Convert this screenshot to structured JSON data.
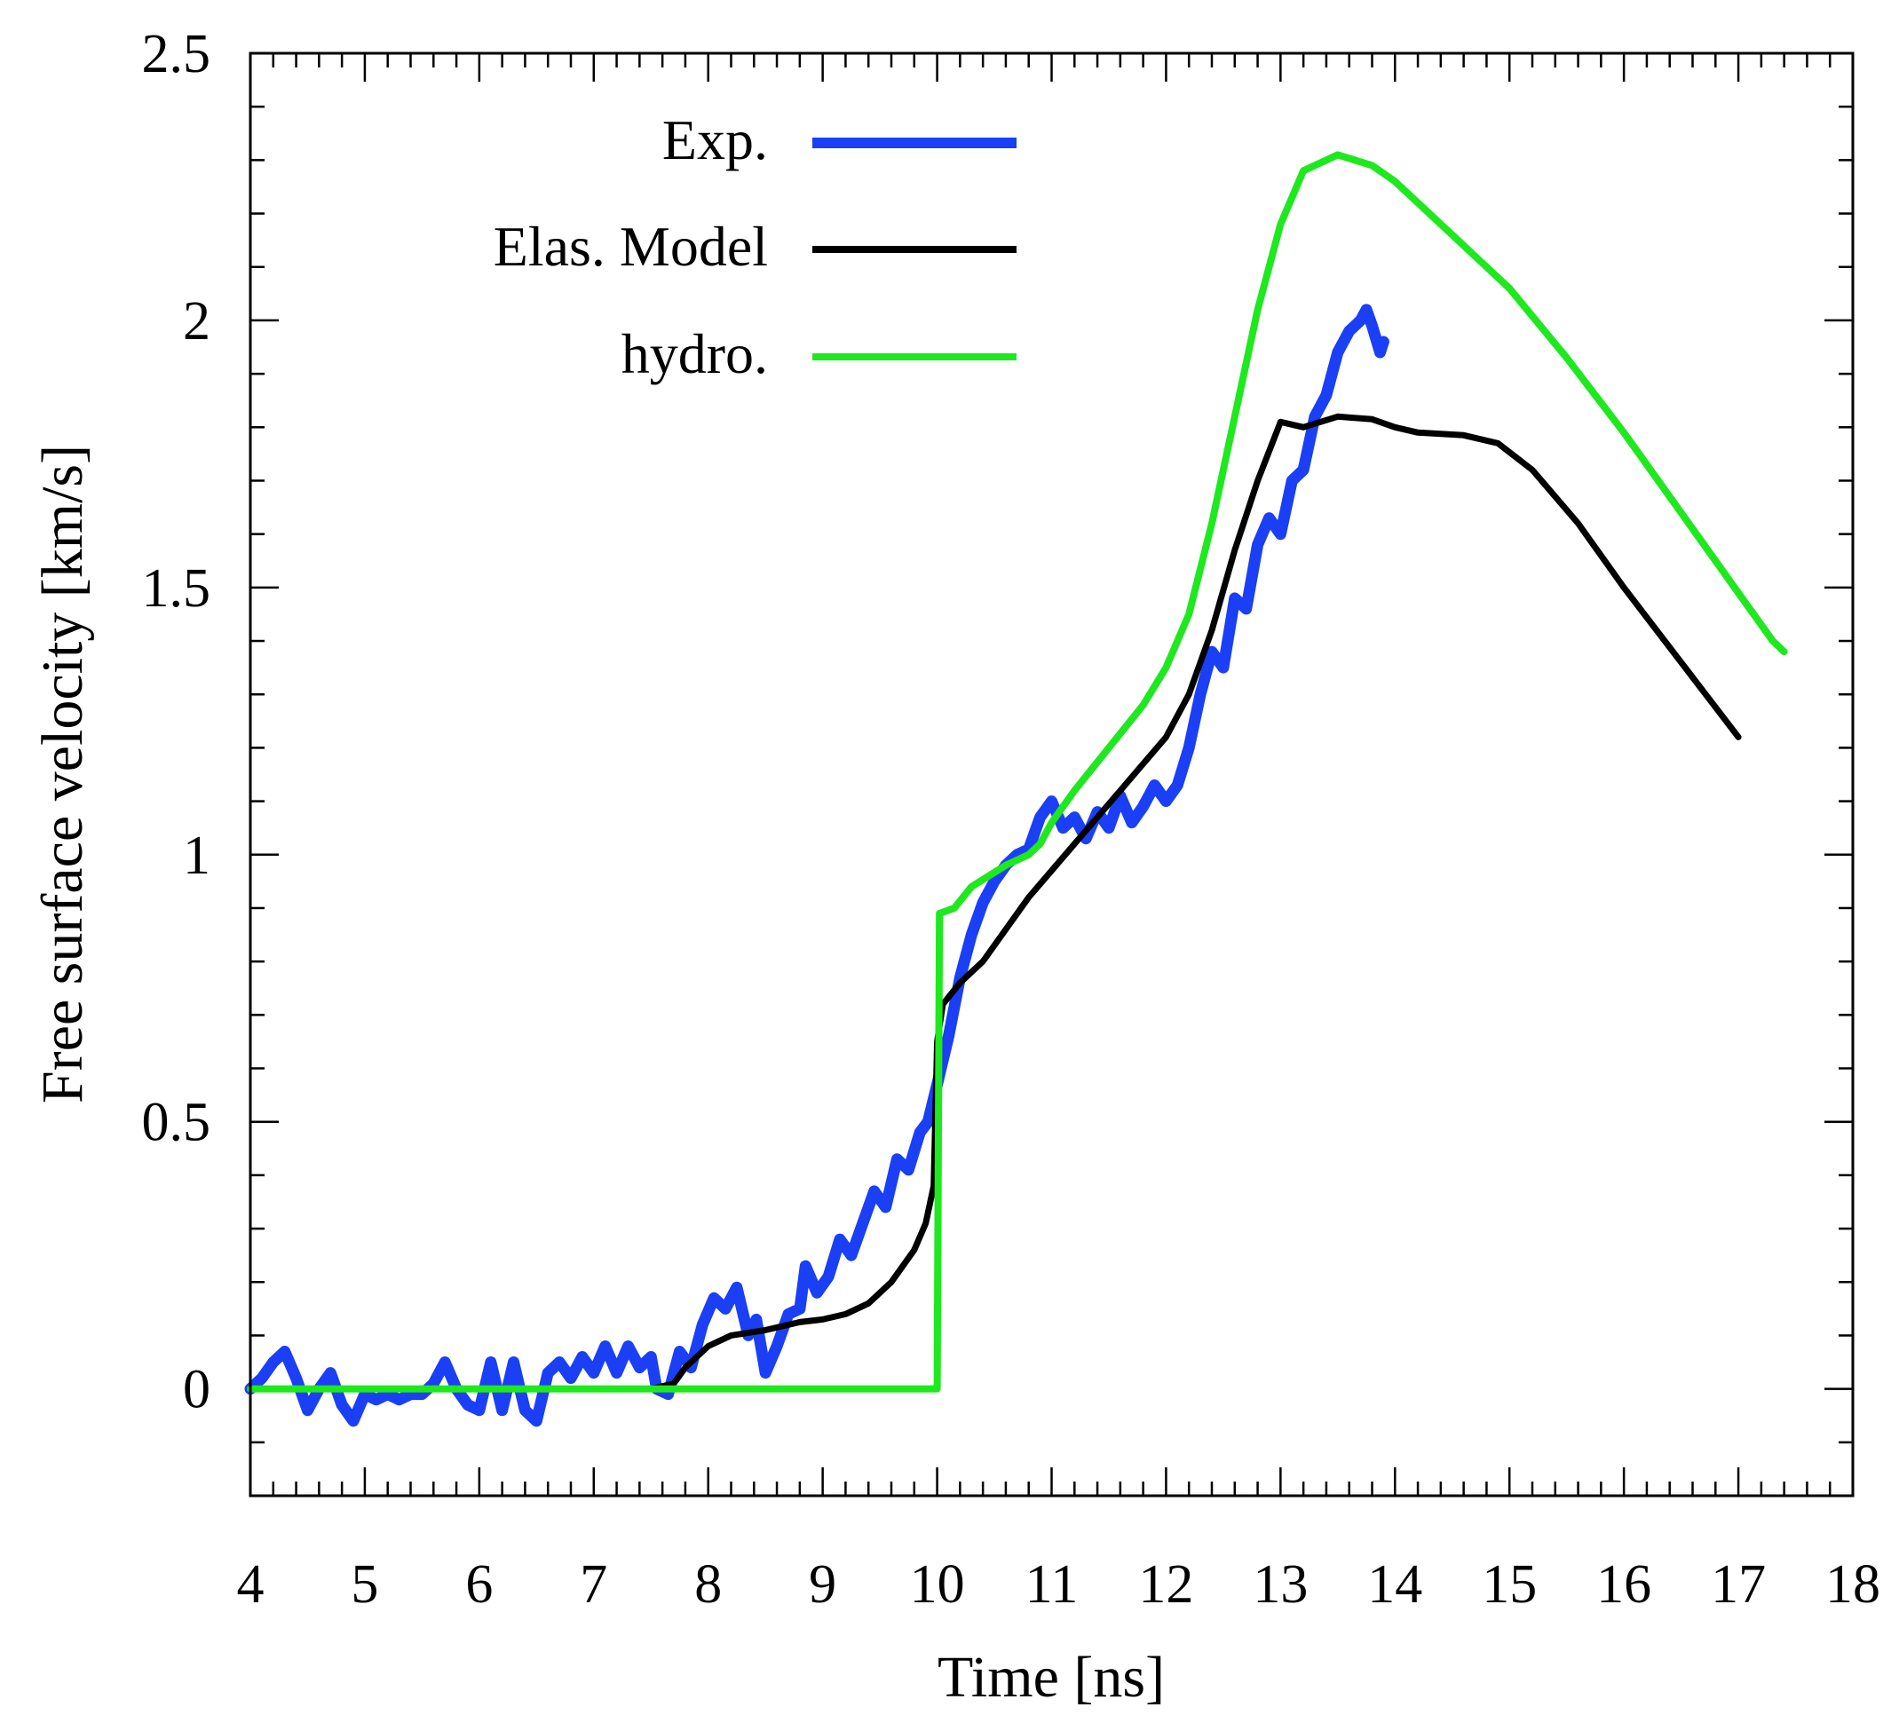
{
  "chart_data": {
    "type": "line",
    "title": "",
    "xlabel": "Time [ns]",
    "ylabel": "Free surface velocity [km/s]",
    "xlim": [
      4,
      18
    ],
    "ylim": [
      -0.2,
      2.5
    ],
    "xticks": [
      4,
      5,
      6,
      7,
      8,
      9,
      10,
      11,
      12,
      13,
      14,
      15,
      16,
      17,
      18
    ],
    "xtick_labels": [
      "4",
      "5",
      "6",
      "7",
      "8",
      "9",
      "10",
      "11",
      "12",
      "13",
      "14",
      "15",
      "16",
      "17",
      "18"
    ],
    "yticks": [
      0,
      0.5,
      1,
      1.5,
      2,
      2.5
    ],
    "ytick_labels": [
      "0",
      "0.5",
      "1",
      "1.5",
      "2",
      "2.5"
    ],
    "minor_x_step": 0.2,
    "minor_y_step": 0.1,
    "legend_position": "top-left",
    "series": [
      {
        "name": "Exp.",
        "color": "#1a3ff5",
        "points": [
          [
            4.0,
            0.0
          ],
          [
            4.1,
            0.02
          ],
          [
            4.2,
            0.05
          ],
          [
            4.3,
            0.07
          ],
          [
            4.4,
            0.02
          ],
          [
            4.5,
            -0.04
          ],
          [
            4.6,
            0.0
          ],
          [
            4.7,
            0.03
          ],
          [
            4.8,
            -0.03
          ],
          [
            4.9,
            -0.06
          ],
          [
            5.0,
            -0.01
          ],
          [
            5.1,
            -0.02
          ],
          [
            5.2,
            -0.01
          ],
          [
            5.3,
            -0.02
          ],
          [
            5.4,
            -0.01
          ],
          [
            5.5,
            -0.01
          ],
          [
            5.6,
            0.01
          ],
          [
            5.7,
            0.05
          ],
          [
            5.8,
            0.0
          ],
          [
            5.9,
            -0.03
          ],
          [
            6.0,
            -0.04
          ],
          [
            6.1,
            0.05
          ],
          [
            6.2,
            -0.04
          ],
          [
            6.3,
            0.05
          ],
          [
            6.4,
            -0.04
          ],
          [
            6.5,
            -0.06
          ],
          [
            6.6,
            0.03
          ],
          [
            6.7,
            0.05
          ],
          [
            6.8,
            0.02
          ],
          [
            6.9,
            0.06
          ],
          [
            7.0,
            0.03
          ],
          [
            7.1,
            0.08
          ],
          [
            7.2,
            0.03
          ],
          [
            7.3,
            0.08
          ],
          [
            7.4,
            0.04
          ],
          [
            7.5,
            0.06
          ],
          [
            7.55,
            0.0
          ],
          [
            7.65,
            -0.01
          ],
          [
            7.75,
            0.07
          ],
          [
            7.85,
            0.04
          ],
          [
            7.95,
            0.12
          ],
          [
            8.05,
            0.17
          ],
          [
            8.15,
            0.15
          ],
          [
            8.25,
            0.19
          ],
          [
            8.35,
            0.1
          ],
          [
            8.42,
            0.13
          ],
          [
            8.5,
            0.03
          ],
          [
            8.6,
            0.08
          ],
          [
            8.7,
            0.14
          ],
          [
            8.8,
            0.15
          ],
          [
            8.85,
            0.23
          ],
          [
            8.95,
            0.18
          ],
          [
            9.05,
            0.21
          ],
          [
            9.15,
            0.28
          ],
          [
            9.25,
            0.25
          ],
          [
            9.35,
            0.31
          ],
          [
            9.45,
            0.37
          ],
          [
            9.55,
            0.34
          ],
          [
            9.65,
            0.43
          ],
          [
            9.75,
            0.41
          ],
          [
            9.85,
            0.48
          ],
          [
            9.92,
            0.5
          ],
          [
            10.0,
            0.57
          ],
          [
            10.1,
            0.66
          ],
          [
            10.2,
            0.77
          ],
          [
            10.3,
            0.85
          ],
          [
            10.4,
            0.91
          ],
          [
            10.5,
            0.95
          ],
          [
            10.6,
            0.98
          ],
          [
            10.7,
            1.0
          ],
          [
            10.8,
            1.01
          ],
          [
            10.9,
            1.07
          ],
          [
            11.0,
            1.1
          ],
          [
            11.1,
            1.05
          ],
          [
            11.2,
            1.07
          ],
          [
            11.3,
            1.03
          ],
          [
            11.4,
            1.08
          ],
          [
            11.5,
            1.05
          ],
          [
            11.6,
            1.11
          ],
          [
            11.7,
            1.06
          ],
          [
            11.8,
            1.09
          ],
          [
            11.9,
            1.13
          ],
          [
            12.0,
            1.1
          ],
          [
            12.1,
            1.13
          ],
          [
            12.2,
            1.2
          ],
          [
            12.3,
            1.3
          ],
          [
            12.4,
            1.38
          ],
          [
            12.5,
            1.35
          ],
          [
            12.6,
            1.48
          ],
          [
            12.7,
            1.46
          ],
          [
            12.8,
            1.58
          ],
          [
            12.9,
            1.63
          ],
          [
            13.0,
            1.6
          ],
          [
            13.1,
            1.7
          ],
          [
            13.2,
            1.72
          ],
          [
            13.3,
            1.82
          ],
          [
            13.4,
            1.86
          ],
          [
            13.5,
            1.94
          ],
          [
            13.6,
            1.98
          ],
          [
            13.7,
            2.0
          ],
          [
            13.75,
            2.02
          ],
          [
            13.8,
            1.99
          ],
          [
            13.87,
            1.94
          ],
          [
            13.9,
            1.96
          ]
        ]
      },
      {
        "name": "Elas. Model",
        "color": "#000000",
        "points": [
          [
            4.0,
            0.0
          ],
          [
            5.0,
            0.0
          ],
          [
            6.0,
            0.0
          ],
          [
            7.0,
            0.0
          ],
          [
            7.5,
            0.0
          ],
          [
            7.7,
            0.01
          ],
          [
            7.8,
            0.04
          ],
          [
            8.0,
            0.08
          ],
          [
            8.2,
            0.1
          ],
          [
            8.5,
            0.11
          ],
          [
            8.8,
            0.125
          ],
          [
            9.0,
            0.13
          ],
          [
            9.2,
            0.14
          ],
          [
            9.4,
            0.16
          ],
          [
            9.6,
            0.2
          ],
          [
            9.8,
            0.26
          ],
          [
            9.9,
            0.31
          ],
          [
            9.97,
            0.38
          ],
          [
            10.0,
            0.65
          ],
          [
            10.05,
            0.72
          ],
          [
            10.2,
            0.76
          ],
          [
            10.4,
            0.8
          ],
          [
            10.6,
            0.86
          ],
          [
            10.8,
            0.92
          ],
          [
            11.0,
            0.97
          ],
          [
            11.2,
            1.02
          ],
          [
            11.4,
            1.07
          ],
          [
            11.6,
            1.12
          ],
          [
            11.8,
            1.17
          ],
          [
            12.0,
            1.22
          ],
          [
            12.2,
            1.3
          ],
          [
            12.4,
            1.42
          ],
          [
            12.6,
            1.57
          ],
          [
            12.8,
            1.7
          ],
          [
            13.0,
            1.81
          ],
          [
            13.2,
            1.8
          ],
          [
            13.5,
            1.82
          ],
          [
            13.8,
            1.815
          ],
          [
            14.0,
            1.8
          ],
          [
            14.2,
            1.79
          ],
          [
            14.6,
            1.785
          ],
          [
            14.9,
            1.77
          ],
          [
            15.2,
            1.72
          ],
          [
            15.6,
            1.62
          ],
          [
            16.0,
            1.5
          ],
          [
            16.5,
            1.36
          ],
          [
            17.0,
            1.22
          ]
        ]
      },
      {
        "name": "hydro.",
        "color": "#1ee81e",
        "points": [
          [
            4.0,
            0.0
          ],
          [
            5.0,
            0.0
          ],
          [
            6.0,
            0.0
          ],
          [
            7.0,
            0.0
          ],
          [
            8.0,
            0.0
          ],
          [
            9.0,
            0.0
          ],
          [
            9.95,
            0.0
          ],
          [
            10.0,
            0.0
          ],
          [
            10.02,
            0.89
          ],
          [
            10.15,
            0.9
          ],
          [
            10.3,
            0.94
          ],
          [
            10.6,
            0.98
          ],
          [
            10.8,
            1.0
          ],
          [
            10.9,
            1.02
          ],
          [
            11.0,
            1.06
          ],
          [
            11.2,
            1.12
          ],
          [
            11.5,
            1.2
          ],
          [
            11.8,
            1.28
          ],
          [
            12.0,
            1.35
          ],
          [
            12.2,
            1.45
          ],
          [
            12.4,
            1.62
          ],
          [
            12.6,
            1.82
          ],
          [
            12.8,
            2.02
          ],
          [
            13.0,
            2.18
          ],
          [
            13.2,
            2.28
          ],
          [
            13.5,
            2.31
          ],
          [
            13.8,
            2.29
          ],
          [
            14.0,
            2.26
          ],
          [
            14.5,
            2.16
          ],
          [
            15.0,
            2.06
          ],
          [
            15.5,
            1.93
          ],
          [
            16.0,
            1.79
          ],
          [
            16.5,
            1.64
          ],
          [
            17.0,
            1.49
          ],
          [
            17.3,
            1.4
          ],
          [
            17.4,
            1.38
          ]
        ]
      }
    ]
  }
}
